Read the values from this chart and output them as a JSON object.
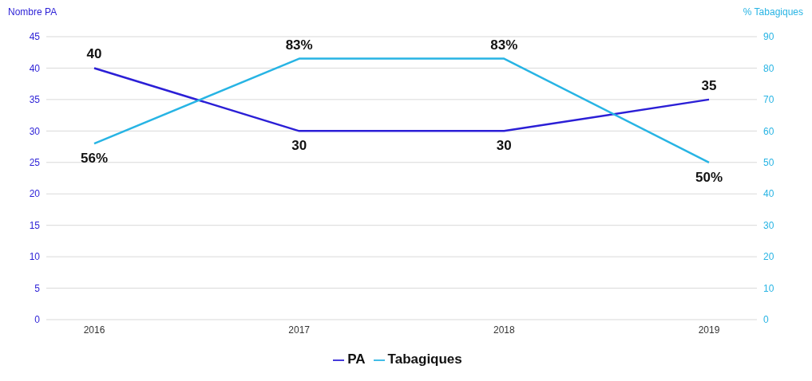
{
  "chart_data": {
    "type": "line",
    "categories": [
      "2016",
      "2017",
      "2018",
      "2019"
    ],
    "ylabel": "Nombre PA",
    "y2label": "% Tabagiques",
    "ylim": [
      0,
      45
    ],
    "yticks": [
      0,
      5,
      10,
      15,
      20,
      25,
      30,
      35,
      40,
      45
    ],
    "y2lim": [
      0,
      90
    ],
    "y2ticks": [
      0,
      10,
      20,
      30,
      40,
      50,
      60,
      70,
      80,
      90
    ],
    "series": [
      {
        "name": "PA",
        "color": "#2b1fd6",
        "values": [
          40,
          30,
          30,
          35
        ],
        "value_labels": [
          "40",
          "30",
          "30",
          "35"
        ]
      },
      {
        "name": "Tabagiques",
        "color": "#27b4e4",
        "values": [
          56,
          83,
          83,
          50
        ],
        "axis": "y2",
        "value_labels": [
          "56%",
          "83%",
          "83%",
          "50%"
        ]
      }
    ],
    "grid": "y",
    "legend": "bottom",
    "marker": "none",
    "line_style": "solid"
  }
}
